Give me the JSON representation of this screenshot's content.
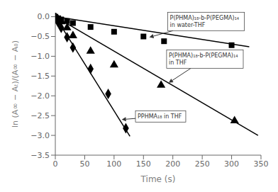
{
  "chart_data": {
    "type": "scatter",
    "xlabel": "Time (s)",
    "ylabel": "ln (A∞ − Aₜ)/(A∞ − A₀)",
    "xlim": [
      0,
      350
    ],
    "ylim": [
      -3.5,
      0.1
    ],
    "xticks": [
      0,
      50,
      100,
      150,
      200,
      250,
      300,
      350
    ],
    "yticks": [
      {
        "value": 0.0,
        "label": "0.0"
      },
      {
        "value": -0.5,
        "label": "−0.5"
      },
      {
        "value": -1.0,
        "label": "−1.0"
      },
      {
        "value": -1.5,
        "label": "−1.5"
      },
      {
        "value": -2.0,
        "label": "−2.0"
      },
      {
        "value": -2.5,
        "label": "−2.5"
      },
      {
        "value": -3.0,
        "label": "−3.0"
      },
      {
        "value": -3.5,
        "label": "−3.5"
      }
    ],
    "grid": false,
    "series": [
      {
        "type": "line",
        "color": "black",
        "line_style": "solid",
        "x": [
          0,
          330
        ],
        "values": [
          0,
          -0.759
        ]
      },
      {
        "type": "scatter",
        "marker": "square",
        "color": "black",
        "x": [
          0,
          5,
          10,
          20,
          30,
          60,
          100,
          150,
          185,
          300
        ],
        "values": [
          0.0,
          -0.04,
          -0.07,
          -0.11,
          -0.16,
          -0.26,
          -0.38,
          -0.5,
          -0.62,
          -0.72
        ]
      },
      {
        "type": "line",
        "color": "black",
        "line_style": "solid",
        "x": [
          0,
          345
        ],
        "values": [
          0,
          -3.0015
        ]
      },
      {
        "type": "scatter",
        "marker": "triangle",
        "color": "black",
        "x": [
          0,
          5,
          10,
          20,
          30,
          60,
          100,
          180,
          305
        ],
        "values": [
          0.0,
          -0.07,
          -0.13,
          -0.28,
          -0.48,
          -0.87,
          -1.22,
          -1.73,
          -2.63
        ]
      },
      {
        "type": "line",
        "color": "black",
        "line_style": "solid",
        "x": [
          0,
          127
        ],
        "values": [
          0,
          -3.0226
        ]
      },
      {
        "type": "scatter",
        "marker": "diamond",
        "color": "black",
        "x": [
          0,
          5,
          10,
          20,
          30,
          60,
          90,
          120
        ],
        "values": [
          0.0,
          -0.15,
          -0.28,
          -0.52,
          -0.78,
          -1.32,
          -1.95,
          -2.82
        ]
      }
    ],
    "annotations": [
      {
        "text": "P(PHMA)₁₈-b-P(PEGMA)₁₄\nin water-THF",
        "xy": [
          160,
          -0.52
        ],
        "xytext": [
          195,
          -0.12
        ]
      },
      {
        "text": "P(PHMA)₁₈-b-P(PEGMA)₁₄\nin THF",
        "xy": [
          193,
          -1.67
        ],
        "xytext": [
          193,
          -1.07
        ]
      },
      {
        "text": "PPHMA₁₈ in THF",
        "xy": [
          113,
          -2.6
        ],
        "xytext": [
          140,
          -2.52
        ]
      }
    ]
  }
}
